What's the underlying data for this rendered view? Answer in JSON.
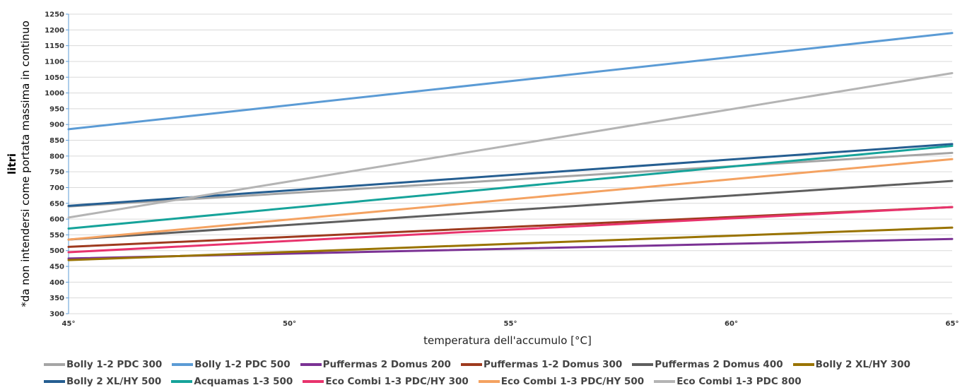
{
  "chart_data": {
    "type": "line",
    "ylabel_main": "litri",
    "ylabel_sub": "*da non intendersi come portata massima in continuo",
    "xlabel": "temperatura dell'accumulo [°C]",
    "x": [
      45,
      65
    ],
    "x_ticks": [
      "45°",
      "50°",
      "55°",
      "60°",
      "65°"
    ],
    "ylim": [
      300,
      1250
    ],
    "y_ticks": [
      300,
      350,
      400,
      450,
      500,
      550,
      600,
      650,
      700,
      750,
      800,
      850,
      900,
      950,
      1000,
      1050,
      1100,
      1150,
      1200,
      1250
    ],
    "grid": true,
    "legend_position": "bottom",
    "series": [
      {
        "name": "Bolly 1-2 PDC 300",
        "color": "#a5a5a5",
        "values": [
          640,
          810
        ]
      },
      {
        "name": "Bolly 1-2 PDC 500",
        "color": "#5b9bd5",
        "values": [
          885,
          1190
        ]
      },
      {
        "name": "Puffermas 2 Domus 200",
        "color": "#7b3294",
        "values": [
          475,
          537
        ]
      },
      {
        "name": "Puffermas 1-2 Domus 300",
        "color": "#9e3a1e",
        "values": [
          512,
          638
        ]
      },
      {
        "name": "Puffermas 2 Domus 400",
        "color": "#5e5e5e",
        "values": [
          535,
          721
        ]
      },
      {
        "name": "Bolly 2 XL/HY 300",
        "color": "#997300",
        "values": [
          470,
          573
        ]
      },
      {
        "name": "Bolly 2 XL/HY 500",
        "color": "#255e91",
        "values": [
          642,
          838
        ]
      },
      {
        "name": "Acquamas 1-3  500",
        "color": "#16a39a",
        "values": [
          570,
          832
        ]
      },
      {
        "name": "Eco Combi 1-3 PDC/HY 300",
        "color": "#e8336d",
        "values": [
          495,
          638
        ]
      },
      {
        "name": "Eco Combi 1-3 PDC/HY 500",
        "color": "#f4a261",
        "values": [
          535,
          790
        ]
      },
      {
        "name": "Eco Combi 1-3 PDC 800",
        "color": "#b4b4b4",
        "values": [
          605,
          1063
        ]
      }
    ]
  }
}
